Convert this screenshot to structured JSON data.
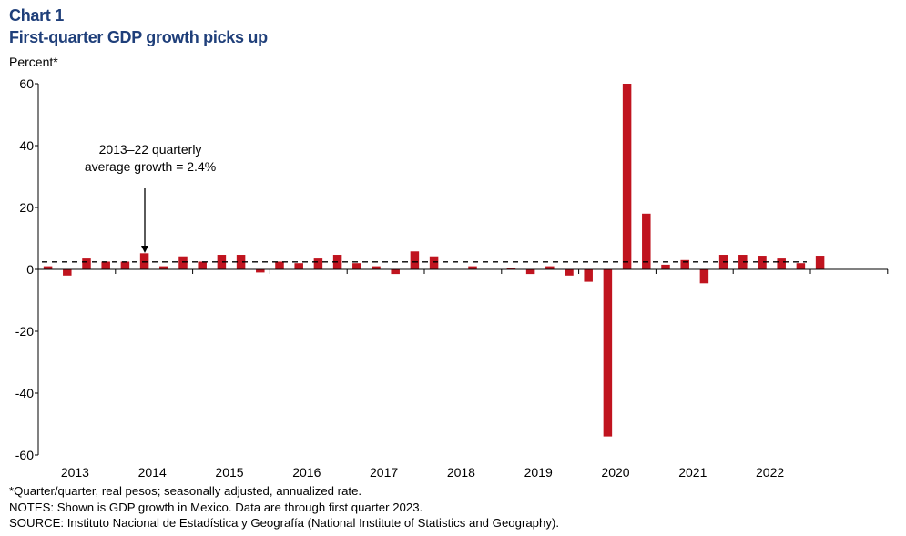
{
  "header": {
    "chart_number": "Chart 1",
    "title": "First-quarter GDP growth picks up"
  },
  "colors": {
    "title": "#1f3f7a",
    "bar": "#c0141f",
    "axis": "#000000"
  },
  "chart_data": {
    "type": "bar",
    "title": "First-quarter GDP growth picks up",
    "ylabel": "Percent*",
    "xlabel": "",
    "ylim": [
      -60,
      60
    ],
    "yticks": [
      60,
      40,
      20,
      0,
      -20,
      -40,
      -60
    ],
    "year_labels": [
      "2013",
      "2014",
      "2015",
      "2016",
      "2017",
      "2018",
      "2019",
      "2020",
      "2021",
      "2022"
    ],
    "series": [
      {
        "name": "GDP growth (quarter/quarter, annualized)",
        "values": [
          1.0,
          -2.0,
          3.5,
          2.5,
          2.5,
          5.2,
          1.0,
          4.2,
          2.5,
          4.7,
          4.7,
          -1.0,
          2.5,
          2.0,
          3.5,
          4.7,
          2.0,
          1.0,
          -1.5,
          5.8,
          4.2,
          0.0,
          1.0,
          0.0,
          0.3,
          -1.5,
          1.0,
          -2.0,
          -4.0,
          -54.0,
          60.0,
          18.0,
          1.5,
          3.0,
          -4.5,
          4.7,
          4.7,
          4.4,
          3.5,
          2.0,
          4.4
        ]
      }
    ],
    "average": {
      "value": 2.4,
      "label_line1": "2013–22 quarterly",
      "label_line2": "average growth = 2.4%"
    }
  },
  "notes": {
    "footnote": "*Quarter/quarter, real pesos; seasonally adjusted, annualized rate.",
    "notes": "NOTES: Shown is GDP growth in Mexico. Data are through first quarter 2023.",
    "source": "SOURCE: Instituto Nacional de Estadística y Geografía (National Institute of Statistics and Geography)."
  }
}
